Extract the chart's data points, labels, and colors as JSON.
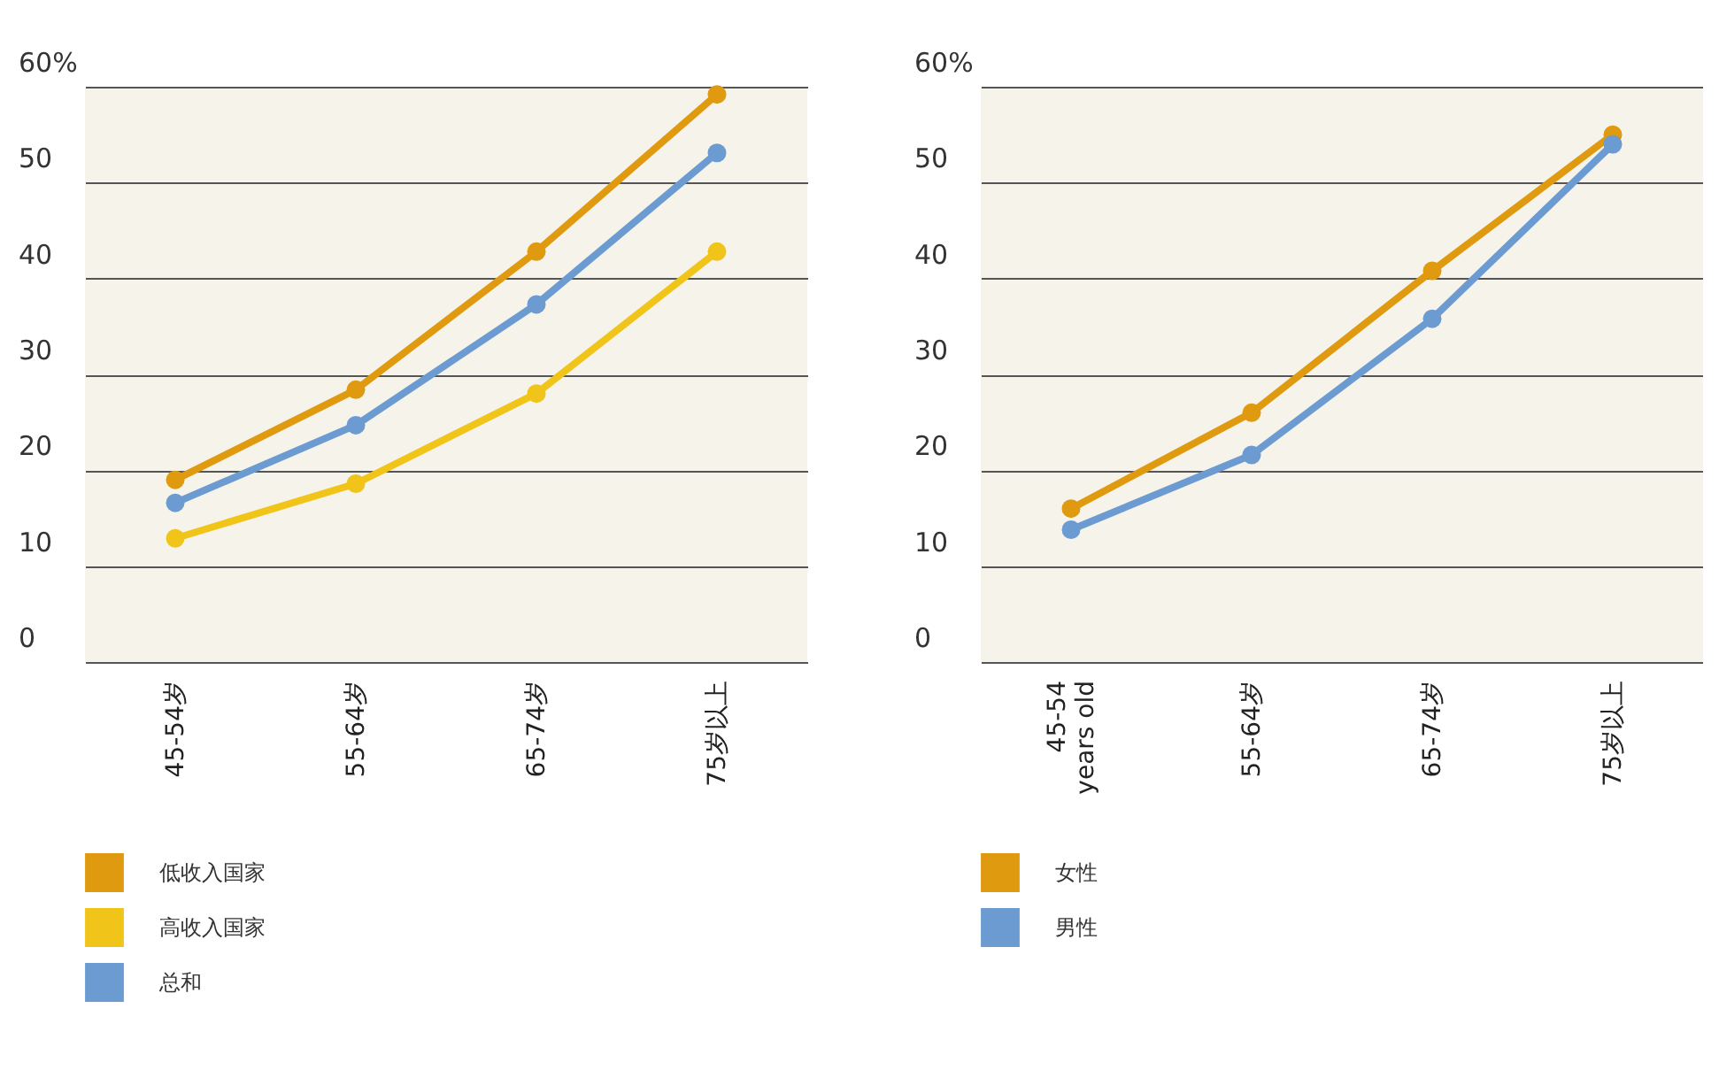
{
  "chart_data": [
    {
      "type": "line",
      "categories": [
        "45-54岁",
        "55-64岁",
        "65-74岁",
        "75岁以上"
      ],
      "series": [
        {
          "name": "低收入国家",
          "color": "#e09a10",
          "values": [
            19,
            28.4,
            42.8,
            59.2
          ]
        },
        {
          "name": "高收入国家",
          "color": "#f0c419",
          "values": [
            12.9,
            18.6,
            28,
            42.8
          ]
        },
        {
          "name": "总和",
          "color": "#6b9bd1",
          "values": [
            16.6,
            24.7,
            37.3,
            53.1
          ]
        }
      ],
      "ylim": [
        0,
        60
      ],
      "yticks": [
        0,
        10,
        20,
        30,
        40,
        50,
        {
          "value": 60,
          "label": "60%"
        }
      ],
      "grid": "y",
      "legend": "bottom left",
      "marker": "circle"
    },
    {
      "type": "line",
      "categories": [
        "45-54\nyears old",
        "55-64岁",
        "65-74岁",
        "75岁以上"
      ],
      "series": [
        {
          "name": "女性",
          "color": "#e09a10",
          "values": [
            16,
            26,
            40.8,
            55
          ]
        },
        {
          "name": "男性",
          "color": "#6b9bd1",
          "values": [
            13.8,
            21.6,
            35.8,
            54
          ]
        }
      ],
      "ylim": [
        0,
        60
      ],
      "yticks": [
        0,
        10,
        20,
        30,
        40,
        50,
        {
          "value": 60,
          "label": "60%"
        }
      ],
      "grid": "y",
      "legend": "bottom left",
      "marker": "circle"
    }
  ]
}
